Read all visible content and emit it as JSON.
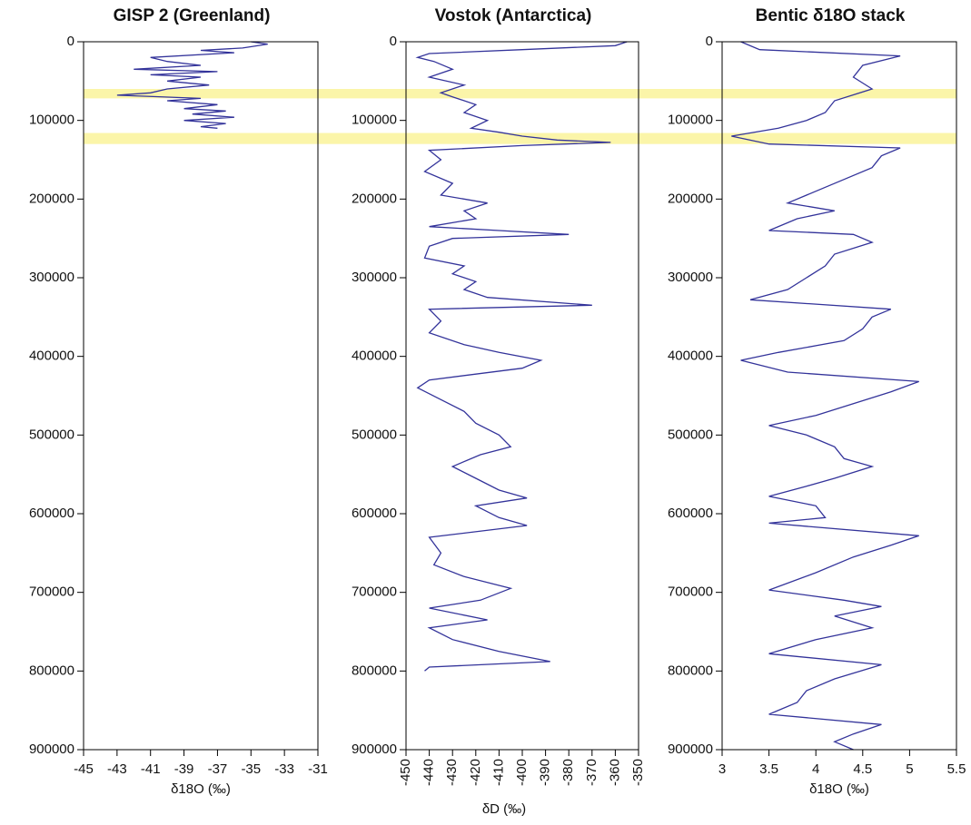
{
  "chart_data": [
    {
      "type": "line",
      "title": "GISP 2 (Greenland)",
      "xlabel": "δ18O (‰)",
      "xlim": [
        -45,
        -31
      ],
      "xticks": [
        -45,
        -43,
        -41,
        -39,
        -37,
        -35,
        -33,
        -31
      ],
      "ylim": [
        0,
        900000
      ],
      "yticks": [
        0,
        100000,
        200000,
        300000,
        400000,
        500000,
        600000,
        700000,
        800000,
        900000
      ],
      "y": [
        0,
        3000,
        8000,
        11000,
        14000,
        20000,
        25000,
        30000,
        35000,
        38000,
        42000,
        45000,
        50000,
        55000,
        60000,
        65000,
        68000,
        72000,
        75000,
        80000,
        85000,
        88000,
        92000,
        96000,
        100000,
        104000,
        108000,
        110000
      ],
      "series": [
        {
          "color": "#33339a",
          "values": [
            -35,
            -34,
            -35.5,
            -38,
            -36,
            -41,
            -40,
            -38,
            -42,
            -37,
            -41,
            -38,
            -40,
            -37.5,
            -40,
            -41,
            -43,
            -38,
            -40,
            -37,
            -39,
            -36.5,
            -38.5,
            -36,
            -39,
            -36.5,
            -38,
            -37
          ]
        }
      ]
    },
    {
      "type": "line",
      "title": "Vostok (Antarctica)",
      "xlabel": "δD (‰)",
      "xlim": [
        -450,
        -350
      ],
      "xticks": [
        -450,
        -440,
        -430,
        -420,
        -410,
        -400,
        -390,
        -380,
        -370,
        -360,
        -350
      ],
      "ylim": [
        0,
        900000
      ],
      "yticks": [
        0,
        100000,
        200000,
        300000,
        400000,
        500000,
        600000,
        700000,
        800000,
        900000
      ],
      "y": [
        0,
        5000,
        10000,
        15000,
        20000,
        25000,
        35000,
        45000,
        55000,
        65000,
        70000,
        80000,
        90000,
        100000,
        110000,
        115000,
        120000,
        125000,
        128000,
        132000,
        138000,
        150000,
        165000,
        180000,
        195000,
        205000,
        215000,
        225000,
        235000,
        240000,
        245000,
        250000,
        260000,
        275000,
        285000,
        295000,
        305000,
        315000,
        325000,
        335000,
        340000,
        355000,
        370000,
        385000,
        395000,
        405000,
        415000,
        430000,
        440000,
        455000,
        470000,
        485000,
        500000,
        515000,
        525000,
        540000,
        555000,
        570000,
        580000,
        590000,
        605000,
        615000,
        630000,
        650000,
        665000,
        680000,
        695000,
        710000,
        720000,
        735000,
        745000,
        760000,
        775000,
        788000,
        795000,
        800000
      ],
      "series": [
        {
          "color": "#33339a",
          "values": [
            -355,
            -360,
            -400,
            -440,
            -445,
            -438,
            -430,
            -440,
            -425,
            -435,
            -430,
            -420,
            -425,
            -415,
            -422,
            -410,
            -400,
            -385,
            -362,
            -400,
            -440,
            -435,
            -442,
            -430,
            -435,
            -415,
            -425,
            -420,
            -440,
            -410,
            -380,
            -430,
            -440,
            -442,
            -425,
            -430,
            -420,
            -425,
            -415,
            -370,
            -440,
            -435,
            -440,
            -425,
            -410,
            -392,
            -400,
            -440,
            -445,
            -435,
            -425,
            -420,
            -410,
            -405,
            -418,
            -430,
            -420,
            -410,
            -398,
            -420,
            -410,
            -398,
            -440,
            -435,
            -438,
            -425,
            -405,
            -418,
            -440,
            -415,
            -440,
            -430,
            -410,
            -388,
            -440,
            -442
          ]
        }
      ]
    },
    {
      "type": "line",
      "title": "Bentic δ18O stack",
      "xlabel": "δ18O (‰)",
      "xlim": [
        3,
        5.5
      ],
      "xticks": [
        3,
        3.5,
        4,
        4.5,
        5,
        5.5
      ],
      "ylim": [
        0,
        900000
      ],
      "yticks": [
        0,
        100000,
        200000,
        300000,
        400000,
        500000,
        600000,
        700000,
        800000,
        900000
      ],
      "y": [
        0,
        10000,
        18000,
        30000,
        45000,
        60000,
        75000,
        90000,
        100000,
        110000,
        120000,
        130000,
        135000,
        145000,
        160000,
        175000,
        190000,
        205000,
        215000,
        225000,
        240000,
        245000,
        255000,
        270000,
        285000,
        300000,
        315000,
        328000,
        340000,
        350000,
        365000,
        380000,
        395000,
        405000,
        420000,
        432000,
        445000,
        460000,
        475000,
        488000,
        500000,
        515000,
        530000,
        540000,
        555000,
        565000,
        578000,
        590000,
        605000,
        612000,
        628000,
        640000,
        655000,
        675000,
        697000,
        710000,
        718000,
        730000,
        745000,
        760000,
        778000,
        792000,
        810000,
        825000,
        840000,
        855000,
        868000,
        880000,
        890000,
        900000
      ],
      "series": [
        {
          "color": "#33339a",
          "values": [
            3.2,
            3.4,
            4.9,
            4.5,
            4.4,
            4.6,
            4.2,
            4.1,
            3.9,
            3.6,
            3.1,
            3.5,
            4.9,
            4.7,
            4.6,
            4.3,
            4.0,
            3.7,
            4.2,
            3.8,
            3.5,
            4.4,
            4.6,
            4.2,
            4.1,
            3.9,
            3.7,
            3.3,
            4.8,
            4.6,
            4.5,
            4.3,
            3.6,
            3.2,
            3.7,
            5.1,
            4.8,
            4.4,
            4.0,
            3.5,
            3.9,
            4.2,
            4.3,
            4.6,
            4.2,
            3.9,
            3.5,
            4.0,
            4.1,
            3.5,
            5.1,
            4.8,
            4.4,
            4.0,
            3.5,
            4.3,
            4.7,
            4.2,
            4.6,
            4.0,
            3.5,
            4.7,
            4.2,
            3.9,
            3.8,
            3.5,
            4.7,
            4.4,
            4.2,
            4.4
          ]
        }
      ]
    }
  ],
  "highlights": [
    {
      "from": 60000,
      "to": 72000
    },
    {
      "from": 116000,
      "to": 130000
    }
  ]
}
